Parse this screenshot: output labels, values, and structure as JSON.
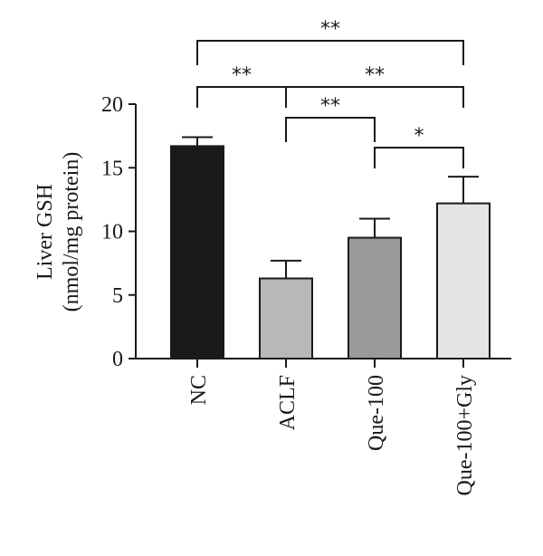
{
  "chart_data": {
    "type": "bar",
    "title": "",
    "ylabel_lines": [
      "Liver GSH",
      "(nmol/mg protein)"
    ],
    "xlabel": "",
    "categories": [
      "NC",
      "ACLF",
      "Que-100",
      "Que-100+Gly"
    ],
    "values": [
      16.7,
      6.3,
      9.5,
      12.2
    ],
    "errors": [
      0.7,
      1.4,
      1.5,
      2.1
    ],
    "bar_colors": [
      "#1a1a1a",
      "#b8b8b8",
      "#9a9a9a",
      "#e4e4e4"
    ],
    "ylim": [
      0,
      20
    ],
    "yticks": [
      0,
      5,
      10,
      15,
      20
    ],
    "grid": false,
    "significance": [
      {
        "from": 0,
        "to": 3,
        "label": "**"
      },
      {
        "from": 0,
        "to": 1,
        "label": "**"
      },
      {
        "from": 1,
        "to": 3,
        "label": "**"
      },
      {
        "from": 1,
        "to": 2,
        "label": "**"
      },
      {
        "from": 2,
        "to": 3,
        "label": "*"
      }
    ]
  }
}
